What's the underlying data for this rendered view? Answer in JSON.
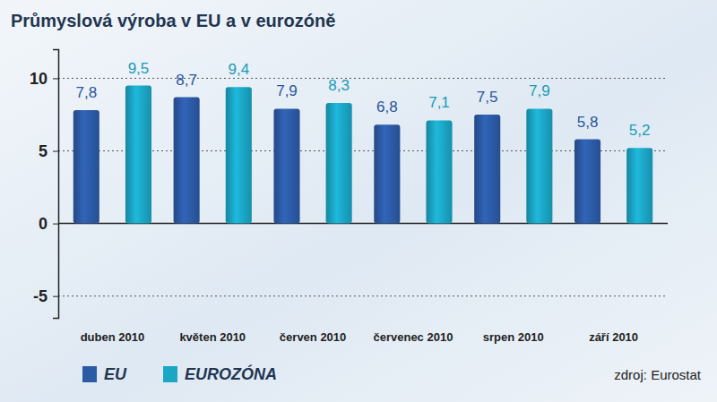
{
  "chart_data": {
    "type": "bar",
    "title": "Průmyslová výroba v EU a v eurozóně",
    "source": "zdroj: Eurostat",
    "categories": [
      "duben 2010",
      "květen 2010",
      "červen 2010",
      "červenec 2010",
      "srpen 2010",
      "září 2010"
    ],
    "series": [
      {
        "name": "EU",
        "color": "#2c5ba6",
        "values": [
          7.8,
          8.7,
          7.9,
          6.8,
          7.5,
          5.8
        ],
        "value_labels": [
          "7,8",
          "8,7",
          "7,9",
          "6,8",
          "7,5",
          "5,8"
        ]
      },
      {
        "name": "EUROZÓNA",
        "color": "#1ba6c6",
        "values": [
          9.5,
          9.4,
          8.3,
          7.1,
          7.9,
          5.2
        ],
        "value_labels": [
          "9,5",
          "9,4",
          "8,3",
          "7,1",
          "7,9",
          "5,2"
        ]
      }
    ],
    "ylim": [
      -6.5,
      12
    ],
    "yticks": [
      -5,
      0,
      5,
      10
    ],
    "grid": true,
    "data_labels": true,
    "legend": "bottom-left"
  }
}
